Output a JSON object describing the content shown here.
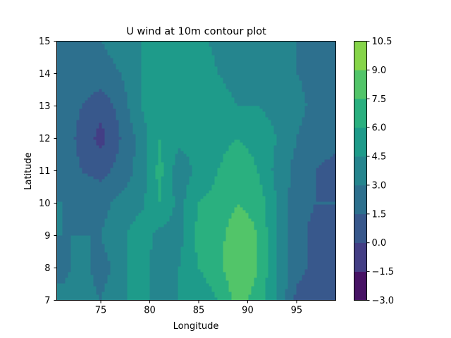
{
  "chart_data": {
    "type": "contour",
    "title": "U wind at 10m contour plot",
    "xlabel": "Longitude",
    "ylabel": "Latitude",
    "xlim": [
      70.5,
      99.0
    ],
    "ylim": [
      7,
      15
    ],
    "xticks": [
      75,
      80,
      85,
      90,
      95
    ],
    "yticks": [
      7,
      8,
      9,
      10,
      11,
      12,
      13,
      14,
      15
    ],
    "grid": false,
    "colorbar": {
      "levels": [
        -3.0,
        -1.5,
        0.0,
        1.5,
        3.0,
        4.5,
        6.0,
        7.5,
        9.0,
        10.5
      ],
      "tick_labels": [
        "−3.0",
        "−1.5",
        "0.0",
        "1.5",
        "3.0",
        "4.5",
        "6.0",
        "7.5",
        "9.0",
        "10.5"
      ],
      "colors": [
        "#471365",
        "#433e85",
        "#38588c",
        "#2d708e",
        "#25858e",
        "#1e9b8a",
        "#2ab07f",
        "#52c569",
        "#86d549",
        "#c2df23"
      ]
    },
    "approximate_field": {
      "lon": [
        71,
        73,
        75,
        77,
        79,
        81,
        83,
        85,
        87,
        89,
        91,
        93,
        95,
        97,
        99
      ],
      "lat": [
        7,
        8,
        9,
        10,
        11,
        12,
        13,
        14,
        15
      ],
      "u": [
        [
          3.5,
          3.5,
          3.0,
          4.0,
          5.5,
          3.5,
          4.5,
          5.0,
          6.0,
          8.0,
          7.0,
          4.5,
          1.0,
          1.0,
          1.5
        ],
        [
          2.5,
          3.5,
          2.5,
          3.5,
          6.0,
          3.0,
          4.5,
          6.0,
          7.0,
          9.0,
          7.5,
          4.5,
          2.0,
          1.0,
          1.5
        ],
        [
          3.0,
          3.0,
          3.0,
          4.0,
          5.5,
          4.0,
          4.0,
          6.5,
          7.0,
          8.5,
          7.5,
          4.5,
          2.0,
          1.0,
          1.5
        ],
        [
          3.0,
          2.5,
          2.5,
          3.5,
          4.0,
          6.0,
          4.0,
          6.0,
          6.5,
          7.5,
          7.0,
          4.5,
          2.0,
          1.5,
          1.5
        ],
        [
          2.5,
          1.5,
          1.0,
          2.0,
          3.5,
          6.5,
          3.5,
          5.0,
          6.0,
          7.0,
          6.0,
          4.0,
          2.5,
          1.5,
          1.0
        ],
        [
          2.5,
          1.0,
          -0.5,
          1.5,
          3.5,
          6.0,
          5.0,
          5.0,
          5.5,
          6.0,
          5.5,
          4.5,
          3.0,
          2.0,
          2.0
        ],
        [
          2.5,
          1.5,
          0.5,
          2.0,
          4.5,
          5.5,
          6.0,
          5.5,
          5.0,
          4.5,
          4.5,
          4.0,
          3.5,
          2.5,
          2.0
        ],
        [
          2.5,
          2.5,
          2.5,
          3.0,
          4.5,
          5.0,
          6.0,
          5.5,
          4.5,
          4.0,
          4.0,
          3.5,
          3.0,
          2.5,
          2.0
        ],
        [
          2.5,
          2.5,
          3.0,
          3.5,
          4.5,
          5.0,
          5.0,
          5.0,
          4.0,
          3.5,
          3.0,
          3.5,
          3.0,
          2.0,
          2.0
        ]
      ]
    }
  }
}
